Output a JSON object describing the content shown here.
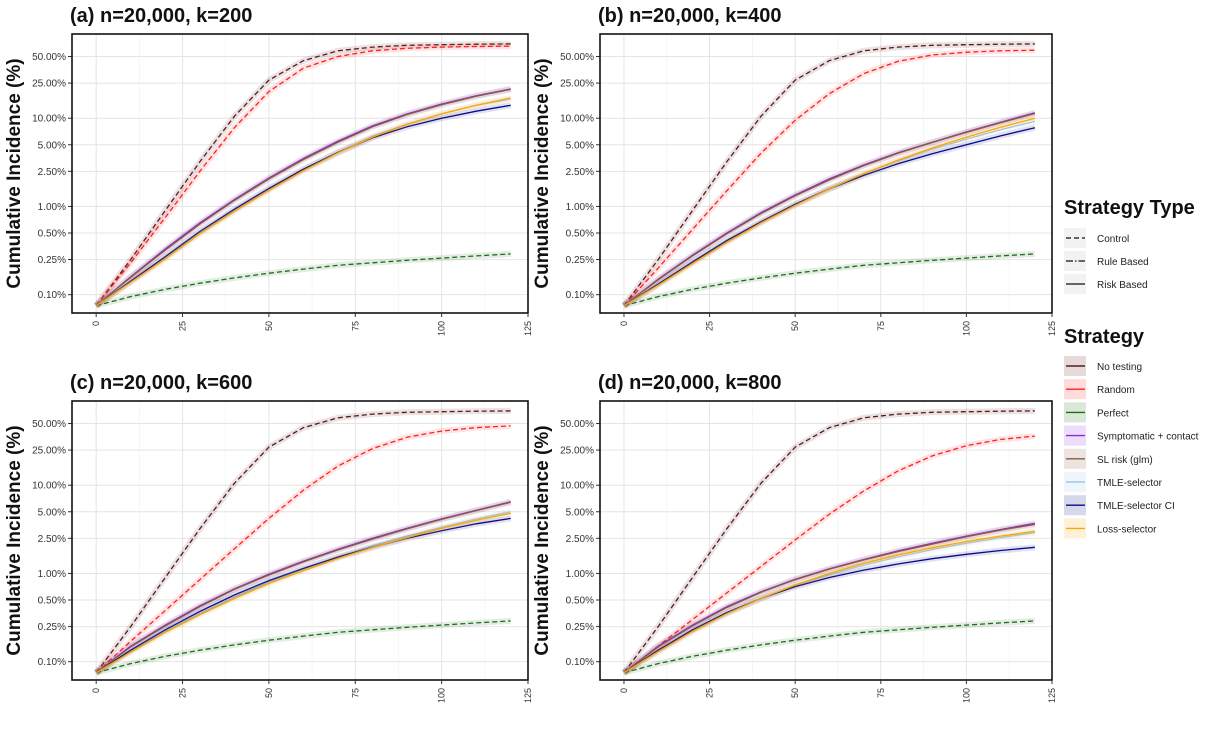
{
  "chart_data": {
    "type": "line",
    "y_scale": "log10",
    "ylabel": "Cumulative Incidence (%)",
    "xlabel": "",
    "xlim": [
      -7,
      125
    ],
    "ylim": [
      0.062,
      90
    ],
    "x_ticks": [
      0,
      25,
      50,
      75,
      100,
      125
    ],
    "y_ticks": [
      0.1,
      0.25,
      0.5,
      1,
      2.5,
      5,
      10,
      25,
      50
    ],
    "y_tick_labels": [
      "0.10%",
      "0.25%",
      "0.50%",
      "1.00%",
      "2.50%",
      "5.00%",
      "10.00%",
      "25.00%",
      "50.00%"
    ],
    "x": [
      0,
      10,
      20,
      30,
      40,
      50,
      60,
      70,
      80,
      90,
      100,
      110,
      120
    ],
    "legend": {
      "type_title": "Strategy Type",
      "types": [
        {
          "key": "control",
          "label": "Control"
        },
        {
          "key": "rule",
          "label": "Rule Based"
        },
        {
          "key": "risk",
          "label": "Risk Based"
        }
      ],
      "strategy_title": "Strategy",
      "strategies": [
        {
          "key": "no_testing",
          "label": "No testing",
          "color": "#5a1a1a"
        },
        {
          "key": "random",
          "label": "Random",
          "color": "#ff1f1f"
        },
        {
          "key": "perfect",
          "label": "Perfect",
          "color": "#1a6e1a"
        },
        {
          "key": "symptomatic",
          "label": "Symptomatic + contact",
          "color": "#8a2be2"
        },
        {
          "key": "sl_risk",
          "label": "SL risk (glm)",
          "color": "#8b5a3c"
        },
        {
          "key": "tmle_selector",
          "label": "TMLE-selector",
          "color": "#9ec9e8"
        },
        {
          "key": "tmle_selector_ci",
          "label": "TMLE-selector CI",
          "color": "#0a0a8a"
        },
        {
          "key": "loss_selector",
          "label": "Loss-selector",
          "color": "#ffa500"
        }
      ]
    },
    "panels": [
      {
        "title": "(a) n=20,000, k=200",
        "series": [
          {
            "name": "No testing",
            "type": "control",
            "values": [
              0.075,
              0.25,
              0.9,
              3.2,
              10.5,
              27,
              45,
              58,
              64,
              67,
              68,
              69,
              69.5
            ]
          },
          {
            "name": "Random",
            "type": "control",
            "values": [
              0.075,
              0.23,
              0.75,
              2.5,
              7.8,
              20,
              37,
              50,
              58,
              62,
              64,
              65,
              65.5
            ]
          },
          {
            "name": "Perfect",
            "type": "control",
            "values": [
              0.075,
              0.095,
              0.115,
              0.135,
              0.155,
              0.175,
              0.195,
              0.215,
              0.23,
              0.245,
              0.26,
              0.275,
              0.29
            ]
          },
          {
            "name": "Symptomatic + contact",
            "type": "risk",
            "values": [
              0.075,
              0.16,
              0.33,
              0.65,
              1.2,
              2.1,
              3.5,
              5.5,
              8.2,
              11.2,
              14.5,
              18,
              21.5
            ]
          },
          {
            "name": "SL risk (glm)",
            "type": "risk",
            "values": [
              0.075,
              0.158,
              0.32,
              0.63,
              1.17,
              2.05,
              3.4,
              5.35,
              8,
              11,
              14.2,
              17.7,
              21.2
            ]
          },
          {
            "name": "TMLE-selector",
            "type": "risk",
            "values": [
              0.075,
              0.14,
              0.26,
              0.5,
              0.9,
              1.55,
              2.6,
              4.1,
              6.2,
              8.6,
              11.2,
              14,
              16.5
            ]
          },
          {
            "name": "TMLE-selector CI",
            "type": "risk",
            "values": [
              0.075,
              0.142,
              0.27,
              0.52,
              0.93,
              1.6,
              2.65,
              4.1,
              6,
              8,
              10,
              12,
              14
            ]
          },
          {
            "name": "Loss-selector",
            "type": "risk",
            "values": [
              0.075,
              0.138,
              0.255,
              0.49,
              0.88,
              1.52,
              2.55,
              4.05,
              6.1,
              8.5,
              11.2,
              14,
              17
            ]
          }
        ]
      },
      {
        "title": "(b) n=20,000, k=400",
        "series": [
          {
            "name": "No testing",
            "type": "control",
            "values": [
              0.075,
              0.25,
              0.9,
              3.2,
              10.5,
              27,
              45,
              58,
              64,
              67,
              68,
              69,
              69.5
            ]
          },
          {
            "name": "Random",
            "type": "control",
            "values": [
              0.075,
              0.2,
              0.55,
              1.5,
              4,
              9.5,
              19,
              32,
              44,
              52,
              56,
              58,
              59
            ]
          },
          {
            "name": "Perfect",
            "type": "control",
            "values": [
              0.075,
              0.095,
              0.115,
              0.135,
              0.155,
              0.175,
              0.195,
              0.215,
              0.23,
              0.245,
              0.26,
              0.275,
              0.29
            ]
          },
          {
            "name": "Symptomatic + contact",
            "type": "risk",
            "values": [
              0.075,
              0.15,
              0.28,
              0.5,
              0.85,
              1.35,
              2.05,
              2.95,
              4.05,
              5.35,
              7,
              9,
              11.5
            ]
          },
          {
            "name": "SL risk (glm)",
            "type": "risk",
            "values": [
              0.075,
              0.148,
              0.275,
              0.49,
              0.83,
              1.32,
              2,
              2.9,
              4,
              5.3,
              6.9,
              8.9,
              11.3
            ]
          },
          {
            "name": "TMLE-selector",
            "type": "risk",
            "values": [
              0.075,
              0.13,
              0.23,
              0.4,
              0.66,
              1.05,
              1.6,
              2.35,
              3.3,
              4.45,
              5.8,
              7.4,
              9.2
            ]
          },
          {
            "name": "TMLE-selector CI",
            "type": "risk",
            "values": [
              0.075,
              0.132,
              0.235,
              0.41,
              0.67,
              1.06,
              1.58,
              2.25,
              3.05,
              3.95,
              5,
              6.3,
              7.8
            ]
          },
          {
            "name": "Loss-selector",
            "type": "risk",
            "values": [
              0.075,
              0.128,
              0.225,
              0.39,
              0.65,
              1.03,
              1.58,
              2.35,
              3.35,
              4.6,
              6.1,
              7.9,
              10
            ]
          }
        ]
      },
      {
        "title": "(c) n=20,000, k=600",
        "series": [
          {
            "name": "No testing",
            "type": "control",
            "values": [
              0.075,
              0.25,
              0.9,
              3.2,
              10.5,
              27,
              45,
              58,
              64,
              67,
              68,
              69,
              69.5
            ]
          },
          {
            "name": "Random",
            "type": "control",
            "values": [
              0.075,
              0.17,
              0.38,
              0.85,
              1.9,
              4.2,
              8.8,
              16.5,
              26,
              35,
              41,
              45,
              47
            ]
          },
          {
            "name": "Perfect",
            "type": "control",
            "values": [
              0.075,
              0.095,
              0.115,
              0.135,
              0.155,
              0.175,
              0.195,
              0.215,
              0.23,
              0.245,
              0.26,
              0.275,
              0.29
            ]
          },
          {
            "name": "Symptomatic + contact",
            "type": "risk",
            "values": [
              0.075,
              0.15,
              0.26,
              0.43,
              0.67,
              0.98,
              1.38,
              1.88,
              2.5,
              3.25,
              4.15,
              5.2,
              6.5
            ]
          },
          {
            "name": "SL risk (glm)",
            "type": "risk",
            "values": [
              0.075,
              0.148,
              0.255,
              0.42,
              0.66,
              0.96,
              1.35,
              1.85,
              2.45,
              3.2,
              4.1,
              5.15,
              6.4
            ]
          },
          {
            "name": "TMLE-selector",
            "type": "risk",
            "values": [
              0.075,
              0.13,
              0.22,
              0.35,
              0.54,
              0.8,
              1.12,
              1.55,
              2.05,
              2.65,
              3.35,
              4.15,
              5
            ]
          },
          {
            "name": "TMLE-selector CI",
            "type": "risk",
            "values": [
              0.075,
              0.135,
              0.23,
              0.37,
              0.57,
              0.83,
              1.14,
              1.53,
              1.98,
              2.5,
              3.05,
              3.65,
              4.2
            ]
          },
          {
            "name": "Loss-selector",
            "type": "risk",
            "values": [
              0.075,
              0.128,
              0.215,
              0.34,
              0.52,
              0.77,
              1.08,
              1.48,
              1.97,
              2.55,
              3.25,
              4,
              4.8
            ]
          }
        ]
      },
      {
        "title": "(d) n=20,000, k=800",
        "series": [
          {
            "name": "No testing",
            "type": "control",
            "values": [
              0.075,
              0.25,
              0.9,
              3.2,
              10.5,
              27,
              45,
              58,
              64,
              67,
              68,
              69,
              69.5
            ]
          },
          {
            "name": "Random",
            "type": "control",
            "values": [
              0.075,
              0.15,
              0.3,
              0.6,
              1.2,
              2.4,
              4.7,
              8.6,
              14.5,
              21.5,
              28,
              33,
              36
            ]
          },
          {
            "name": "Perfect",
            "type": "control",
            "values": [
              0.075,
              0.095,
              0.115,
              0.135,
              0.155,
              0.175,
              0.195,
              0.215,
              0.23,
              0.245,
              0.26,
              0.275,
              0.29
            ]
          },
          {
            "name": "Symptomatic + contact",
            "type": "risk",
            "values": [
              0.075,
              0.15,
              0.26,
              0.42,
              0.62,
              0.86,
              1.13,
              1.44,
              1.8,
              2.2,
              2.65,
              3.15,
              3.7
            ]
          },
          {
            "name": "SL risk (glm)",
            "type": "risk",
            "values": [
              0.075,
              0.148,
              0.255,
              0.41,
              0.61,
              0.85,
              1.12,
              1.42,
              1.77,
              2.15,
              2.6,
              3.1,
              3.6
            ]
          },
          {
            "name": "TMLE-selector",
            "type": "risk",
            "values": [
              0.075,
              0.13,
              0.22,
              0.35,
              0.52,
              0.73,
              0.97,
              1.24,
              1.54,
              1.87,
              2.2,
              2.55,
              2.9
            ]
          },
          {
            "name": "TMLE-selector CI",
            "type": "risk",
            "values": [
              0.075,
              0.135,
              0.23,
              0.36,
              0.52,
              0.71,
              0.9,
              1.09,
              1.28,
              1.47,
              1.65,
              1.82,
              1.98
            ]
          },
          {
            "name": "Loss-selector",
            "type": "risk",
            "values": [
              0.075,
              0.13,
              0.22,
              0.35,
              0.52,
              0.74,
              1.0,
              1.3,
              1.62,
              1.95,
              2.3,
              2.65,
              3.0
            ]
          }
        ]
      }
    ]
  }
}
